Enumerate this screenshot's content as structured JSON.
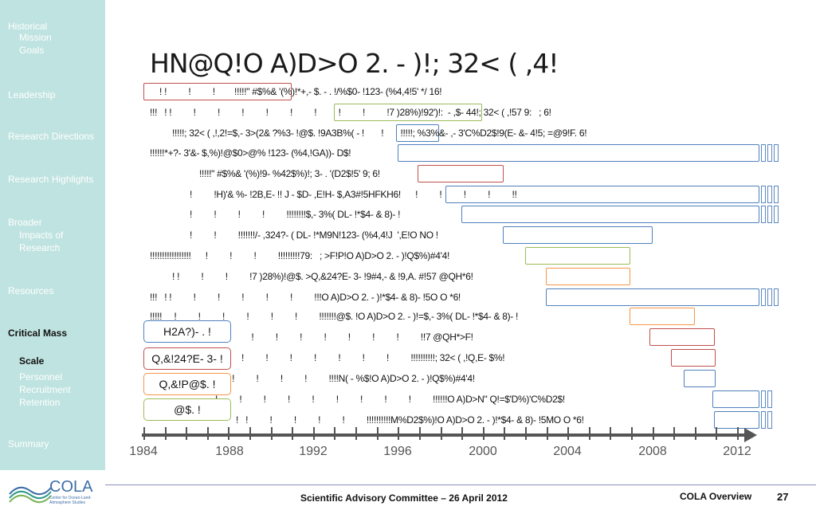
{
  "sidebar": {
    "items": [
      {
        "label": "Historical"
      },
      {
        "label": "Mission"
      },
      {
        "label": "Goals"
      },
      {
        "label": "Leadership"
      },
      {
        "label": "Research Directions"
      },
      {
        "label": "Research Highlights"
      },
      {
        "label": "Broader"
      },
      {
        "label": "Impacts of"
      },
      {
        "label": "Research"
      },
      {
        "label": "Resources"
      },
      {
        "label": "Critical Mass"
      },
      {
        "label": "Scale"
      },
      {
        "label": "Personnel"
      },
      {
        "label": "Recruitment"
      },
      {
        "label": "Retention"
      },
      {
        "label": "Summary"
      }
    ]
  },
  "title": "HN@Q!O A)D>O 2. - )!; 32< ( ,4!",
  "lines": [
    "! !         !         !        !!!!!\" #$%& '(%)!*+,- $. - . !/%$0- !123- (%4,4!5' */ 16!",
    "!!!   ! !         !         !         !         !         !         !         !         !         !7 )28%)!92')!:  - ,$- 44!; 32< ( ,!57 9:   ; 6!",
    "!!!!!; 32< ( ,!,2!=$,- 3>(2& ?%3- !@$. !9A3B%( - !       !       !!!!!; %3%&- ,- 3'C%D2$!9(E- &- 4!5; =@9!F. 6!",
    "!!!!!!*+?- 3'&- $,%)!@$0>@% !123- (%4,!GA))- D$!",
    "!!!!!\" #$%& '(%)!9- %42$%)!; 3- . '(D2$!5' 9; 6!",
    "!         !H)'& %- !2B,E- !! J - $D- ,E!H- $,A3#!5HFKH6!      !         !         !         !         !!",
    "!         !         !         !         !!!!!!!!$,- 3%( DL- !*$4- & 8)- !",
    "!         !         !!!!!!!/- ,324?- ( DL- !*M9N!123- (%4,4!J  ',E!O NO !",
    "!!!!!!!!!!!!!!!!!      !         !         !         !!!!!!!!!79:   ; >F!P!O A)D>O 2. - )!Q$%)#4'4!",
    "! !         !         !         !7 )28%)!@$. >Q,&24?E- 3- !9#4,- & !9,A. #!57 @QH*6!",
    "!!!   ! !         !         !         !         !         !         !!!O A)D>O 2. - )!*$4- & 8)- !5O O *6!",
    "!!!!!     !         !         !         !         !         !         !!!!!!!@$. !O A)D>O 2. - )!=$,- 3%( DL- !*$4- & 8)- !",
    "!!!!!!!!    !         !         !         !         !         !         !         !         !         !         !!7 @QH*>F!",
    "Q,&!24?E- 3- !    !         !         !         !         !         !         !         !         !!!!!!!!!!; 32< ( ,!Q,E- $%!",
    "!!!!!!!!!!!   !         !         !         !         !         !         !!!!N( - %$!O A)D>O 2. - )!Q$%)#4'4!",
    "!         !         !         !         !         !         !         !         !         !!!!!!O A)D>N\" Q!=$'D%)'C%D2$!",
    "!   !         !         !         !         !         !!!!!!!!!!M%D2$%)!O A)D>O 2. - )!*$4- & 8)- !5MO O *6!"
  ],
  "label_boxes": [
    {
      "text": "H2A?)- . !"
    },
    {
      "text": "Q,&!24?E- 3- !"
    },
    {
      "text": "Q,&!P@$. !"
    },
    {
      "text": "@$. !"
    }
  ],
  "axis": {
    "years": [
      "1984",
      "1988",
      "1992",
      "1996",
      "2000",
      "2004",
      "2008",
      "2012"
    ]
  },
  "footer": {
    "logo_text": "COLA",
    "logo_sub": "Center for Ocean-Land-Atmosphere Studies",
    "center": "Scientific Advisory Committee – 26 April 2012",
    "right": "COLA Overview",
    "page": "27"
  },
  "colors": {
    "sidebar_bg": "#bfe3e0",
    "bar_red": "#c0504d",
    "bar_green": "#9bbb59",
    "bar_blue": "#4f81bd",
    "bar_orange": "#f79646",
    "axis": "#555555"
  }
}
